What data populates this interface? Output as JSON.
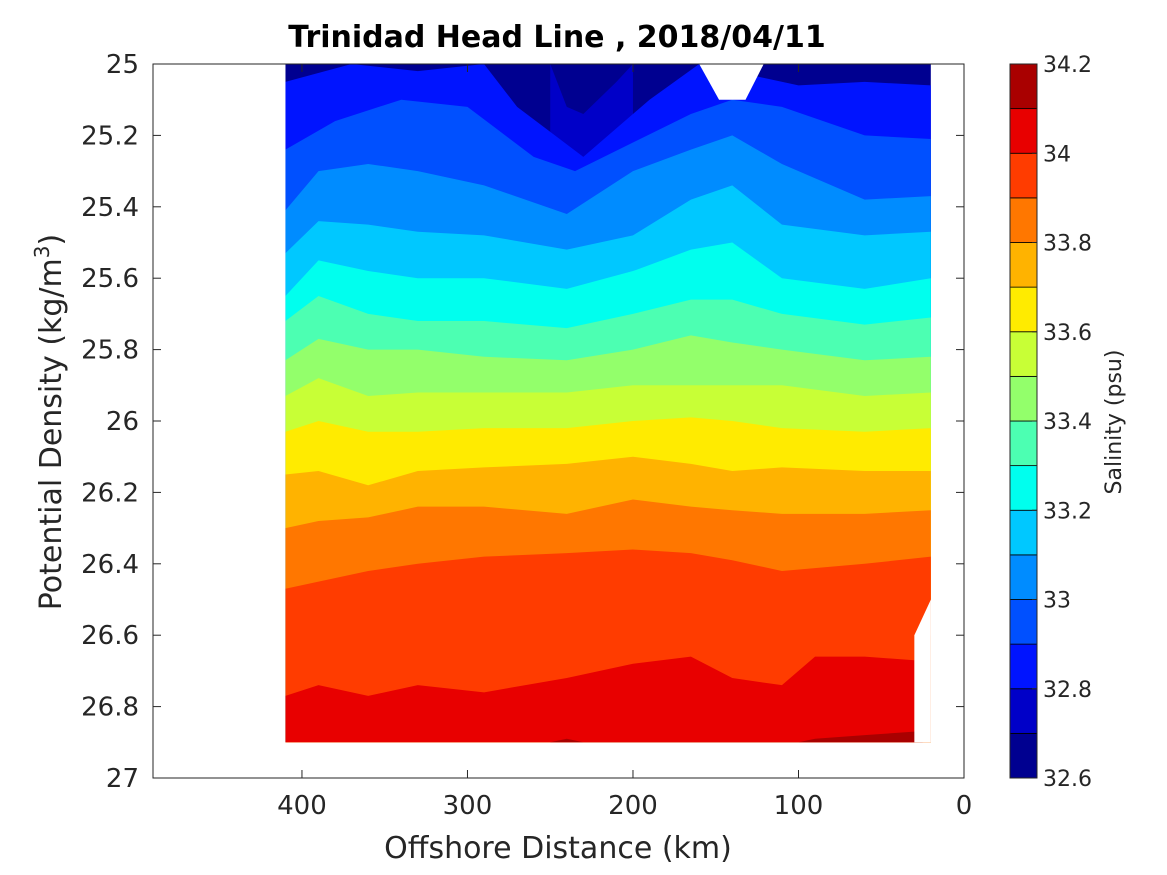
{
  "chart_data": {
    "type": "heatmap",
    "title": "Trinidad Head Line , 2018/04/11",
    "xlabel": "Offshore Distance (km)",
    "ylabel": "Potential Density (kg/m",
    "ylabel_superscript": "3",
    "ylabel_close": ")",
    "xlim": [
      490,
      0
    ],
    "ylim": [
      25,
      27
    ],
    "x_reversed": true,
    "y_reversed": true,
    "x_ticks": [
      400,
      300,
      200,
      100,
      0
    ],
    "y_ticks": [
      "25",
      "25.2",
      "25.4",
      "25.6",
      "25.8",
      "26",
      "26.2",
      "26.4",
      "26.6",
      "26.8",
      "27"
    ],
    "data_extent": {
      "x_range": [
        410,
        20
      ],
      "y_range": [
        25,
        26.9
      ]
    },
    "colorbar": {
      "label": "Salinity (psu)",
      "range": [
        32.6,
        34.2
      ],
      "tick_labels": [
        "32.6",
        "32.8",
        "33",
        "33.2",
        "33.4",
        "33.6",
        "33.8",
        "34",
        "34.2"
      ],
      "levels": [
        32.6,
        32.7,
        32.8,
        32.9,
        33.0,
        33.1,
        33.2,
        33.3,
        33.4,
        33.5,
        33.6,
        33.7,
        33.8,
        33.9,
        34.0,
        34.1,
        34.2
      ],
      "colors": [
        "#000090",
        "#0000C8",
        "#0014FF",
        "#0050FF",
        "#008CFF",
        "#00C8FF",
        "#00FFEE",
        "#4CFFB2",
        "#93FF6B",
        "#C8FF36",
        "#FFEB00",
        "#FFB300",
        "#FF7700",
        "#FF3C00",
        "#E80000",
        "#A90000"
      ]
    },
    "isohalines": [
      {
        "salinity": 32.7,
        "points": [
          [
            250,
            25.0
          ],
          [
            240,
            25.12
          ],
          [
            230,
            25.14
          ],
          [
            210,
            25.05
          ],
          [
            200,
            25.0
          ]
        ]
      },
      {
        "salinity": 32.8,
        "points": [
          [
            410,
            25.05
          ],
          [
            370,
            25.0
          ],
          [
            330,
            25.02
          ],
          [
            290,
            25.0
          ],
          [
            270,
            25.12
          ],
          [
            230,
            25.26
          ],
          [
            190,
            25.1
          ],
          [
            160,
            25.0
          ],
          [
            100,
            25.06
          ],
          [
            60,
            25.05
          ],
          [
            20,
            25.06
          ]
        ]
      },
      {
        "salinity": 32.9,
        "points": [
          [
            410,
            25.24
          ],
          [
            380,
            25.16
          ],
          [
            340,
            25.1
          ],
          [
            300,
            25.12
          ],
          [
            260,
            25.26
          ],
          [
            235,
            25.3
          ],
          [
            200,
            25.22
          ],
          [
            165,
            25.14
          ],
          [
            140,
            25.1
          ],
          [
            110,
            25.12
          ],
          [
            60,
            25.2
          ],
          [
            20,
            25.21
          ]
        ]
      },
      {
        "salinity": 33.0,
        "points": [
          [
            410,
            25.41
          ],
          [
            390,
            25.3
          ],
          [
            360,
            25.28
          ],
          [
            330,
            25.3
          ],
          [
            290,
            25.34
          ],
          [
            240,
            25.42
          ],
          [
            200,
            25.3
          ],
          [
            165,
            25.24
          ],
          [
            140,
            25.2
          ],
          [
            110,
            25.28
          ],
          [
            60,
            25.38
          ],
          [
            20,
            25.37
          ]
        ]
      },
      {
        "salinity": 33.1,
        "points": [
          [
            410,
            25.53
          ],
          [
            390,
            25.44
          ],
          [
            360,
            25.45
          ],
          [
            330,
            25.47
          ],
          [
            290,
            25.48
          ],
          [
            240,
            25.52
          ],
          [
            200,
            25.48
          ],
          [
            165,
            25.38
          ],
          [
            140,
            25.34
          ],
          [
            110,
            25.45
          ],
          [
            60,
            25.48
          ],
          [
            20,
            25.47
          ]
        ]
      },
      {
        "salinity": 33.2,
        "points": [
          [
            410,
            25.65
          ],
          [
            390,
            25.55
          ],
          [
            360,
            25.58
          ],
          [
            330,
            25.6
          ],
          [
            290,
            25.6
          ],
          [
            240,
            25.63
          ],
          [
            200,
            25.58
          ],
          [
            165,
            25.52
          ],
          [
            140,
            25.5
          ],
          [
            110,
            25.6
          ],
          [
            60,
            25.63
          ],
          [
            20,
            25.6
          ]
        ]
      },
      {
        "salinity": 33.3,
        "points": [
          [
            410,
            25.72
          ],
          [
            390,
            25.65
          ],
          [
            360,
            25.7
          ],
          [
            330,
            25.72
          ],
          [
            290,
            25.72
          ],
          [
            240,
            25.74
          ],
          [
            200,
            25.7
          ],
          [
            165,
            25.66
          ],
          [
            140,
            25.66
          ],
          [
            110,
            25.7
          ],
          [
            60,
            25.73
          ],
          [
            20,
            25.71
          ]
        ]
      },
      {
        "salinity": 33.4,
        "points": [
          [
            410,
            25.83
          ],
          [
            390,
            25.77
          ],
          [
            360,
            25.8
          ],
          [
            330,
            25.8
          ],
          [
            290,
            25.82
          ],
          [
            240,
            25.83
          ],
          [
            200,
            25.8
          ],
          [
            165,
            25.76
          ],
          [
            140,
            25.78
          ],
          [
            110,
            25.8
          ],
          [
            60,
            25.83
          ],
          [
            20,
            25.82
          ]
        ]
      },
      {
        "salinity": 33.5,
        "points": [
          [
            410,
            25.93
          ],
          [
            390,
            25.88
          ],
          [
            360,
            25.93
          ],
          [
            330,
            25.92
          ],
          [
            290,
            25.92
          ],
          [
            240,
            25.92
          ],
          [
            200,
            25.9
          ],
          [
            165,
            25.9
          ],
          [
            140,
            25.9
          ],
          [
            110,
            25.9
          ],
          [
            60,
            25.93
          ],
          [
            20,
            25.92
          ]
        ]
      },
      {
        "salinity": 33.6,
        "points": [
          [
            410,
            26.03
          ],
          [
            390,
            26.0
          ],
          [
            360,
            26.03
          ],
          [
            330,
            26.03
          ],
          [
            290,
            26.02
          ],
          [
            240,
            26.02
          ],
          [
            200,
            26.0
          ],
          [
            165,
            25.99
          ],
          [
            140,
            26.0
          ],
          [
            110,
            26.02
          ],
          [
            60,
            26.03
          ],
          [
            20,
            26.02
          ]
        ]
      },
      {
        "salinity": 33.7,
        "points": [
          [
            410,
            26.15
          ],
          [
            390,
            26.14
          ],
          [
            360,
            26.18
          ],
          [
            330,
            26.14
          ],
          [
            290,
            26.13
          ],
          [
            240,
            26.12
          ],
          [
            200,
            26.1
          ],
          [
            165,
            26.12
          ],
          [
            140,
            26.14
          ],
          [
            110,
            26.13
          ],
          [
            60,
            26.14
          ],
          [
            20,
            26.14
          ]
        ]
      },
      {
        "salinity": 33.8,
        "points": [
          [
            410,
            26.3
          ],
          [
            390,
            26.28
          ],
          [
            360,
            26.27
          ],
          [
            330,
            26.24
          ],
          [
            290,
            26.24
          ],
          [
            240,
            26.26
          ],
          [
            200,
            26.22
          ],
          [
            165,
            26.24
          ],
          [
            140,
            26.25
          ],
          [
            110,
            26.26
          ],
          [
            60,
            26.26
          ],
          [
            20,
            26.25
          ]
        ]
      },
      {
        "salinity": 33.9,
        "points": [
          [
            410,
            26.47
          ],
          [
            390,
            26.45
          ],
          [
            360,
            26.42
          ],
          [
            330,
            26.4
          ],
          [
            290,
            26.38
          ],
          [
            240,
            26.37
          ],
          [
            200,
            26.36
          ],
          [
            165,
            26.37
          ],
          [
            140,
            26.39
          ],
          [
            110,
            26.42
          ],
          [
            60,
            26.4
          ],
          [
            20,
            26.38
          ]
        ]
      },
      {
        "salinity": 34.0,
        "points": [
          [
            410,
            26.77
          ],
          [
            390,
            26.74
          ],
          [
            360,
            26.77
          ],
          [
            330,
            26.74
          ],
          [
            290,
            26.76
          ],
          [
            240,
            26.72
          ],
          [
            200,
            26.68
          ],
          [
            165,
            26.66
          ],
          [
            140,
            26.72
          ],
          [
            110,
            26.74
          ],
          [
            90,
            26.66
          ],
          [
            60,
            26.66
          ],
          [
            30,
            26.67
          ]
        ]
      },
      {
        "salinity": 34.1,
        "points": [
          [
            250,
            26.9
          ],
          [
            240,
            26.89
          ],
          [
            230,
            26.9
          ],
          [
            100,
            26.9
          ],
          [
            90,
            26.89
          ],
          [
            60,
            26.88
          ],
          [
            30,
            26.87
          ],
          [
            25,
            26.86
          ]
        ]
      }
    ],
    "data_gaps": [
      {
        "name": "top-gap",
        "points": [
          [
            160,
            25.0
          ],
          [
            148,
            25.1
          ],
          [
            132,
            25.1
          ],
          [
            121,
            25.0
          ]
        ]
      },
      {
        "name": "bottom-right-gap",
        "points": [
          [
            20,
            26.5
          ],
          [
            30,
            26.6
          ],
          [
            30,
            26.9
          ],
          [
            20,
            26.9
          ]
        ]
      }
    ],
    "grid": false,
    "legend": "none"
  }
}
